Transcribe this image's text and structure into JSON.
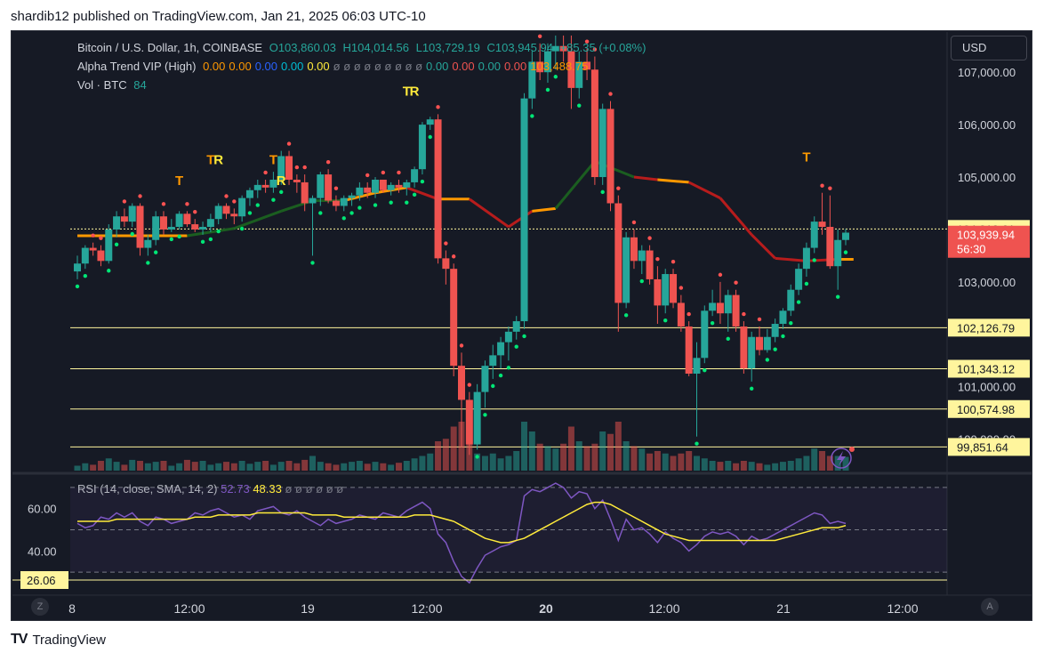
{
  "header": {
    "text": "shardib12 published on TradingView.com, Jan 21, 2025 06:03 UTC-10"
  },
  "footer": {
    "logo": "TV",
    "brand": "TradingView"
  },
  "currency_button": "USD",
  "legend": {
    "symbol": "Bitcoin / U.S. Dollar, 1h, COINBASE",
    "ohlc": {
      "o": "O103,860.03",
      "h": "H104,014.56",
      "l": "L103,729.19",
      "c": "C103,945.94",
      "chg": "+85.35 (+0.08%)"
    },
    "indicator_name": "Alpha Trend VIP (High)",
    "indicator_values": [
      {
        "text": "0.00",
        "color": "#ff9800"
      },
      {
        "text": "0.00",
        "color": "#ff9800"
      },
      {
        "text": "0.00",
        "color": "#2962ff"
      },
      {
        "text": "0.00",
        "color": "#00bcd4"
      },
      {
        "text": "0.00",
        "color": "#ffeb3b"
      },
      {
        "text": "ø ø ø ø ø ø ø ø ø",
        "color": "#787b86"
      },
      {
        "text": "0.00",
        "color": "#26a69a"
      },
      {
        "text": "0.00",
        "color": "#ef5350"
      },
      {
        "text": "0.00",
        "color": "#26a69a"
      },
      {
        "text": "0.00",
        "color": "#ef5350"
      },
      {
        "text": "103,488.75",
        "color": "#ff9800"
      }
    ],
    "volume_label": "Vol · BTC",
    "volume_value": "84",
    "rsi_label": "RSI (14, close, SMA, 14, 2)",
    "rsi_value": "52.73",
    "rsi_sma_value": "48.33",
    "rsi_empty": "ø ø ø ø ø ø"
  },
  "colors": {
    "up": "#26a69a",
    "down": "#ef5350",
    "signal_up": "#ffeb3b",
    "signal_down": "#ff9800",
    "trend_up": "#1b5e20",
    "trend_down": "#b71c1c",
    "level": "#fff59d",
    "rsi": "#7e57c2",
    "rsi_sma": "#ffeb3b"
  },
  "chart_data": {
    "type": "candlestick",
    "symbol": "Bitcoin / U.S. Dollar",
    "interval": "1h",
    "exchange": "COINBASE",
    "y_axis_labels": [
      "107,000.00",
      "106,000.00",
      "105,000.00",
      "103,000.00",
      "101,000.00",
      "100,000.00"
    ],
    "x_axis_labels": [
      "8",
      "12:00",
      "19",
      "12:00",
      "20",
      "12:00",
      "21",
      "12:00"
    ],
    "ylim": [
      99400,
      107750
    ],
    "last_price": "103,939.94",
    "countdown": "56:30",
    "levels": [
      {
        "price": 104010.61,
        "label": "104,010.61"
      },
      {
        "price": 102126.79,
        "label": "102,126.79"
      },
      {
        "price": 101343.12,
        "label": "101,343.12"
      },
      {
        "price": 100574.98,
        "label": "100,574.98"
      },
      {
        "price": 99851.64,
        "label": "99,851.64"
      }
    ],
    "candles": [
      [
        103200,
        103500,
        103050,
        103350
      ],
      [
        103350,
        103700,
        103250,
        103650
      ],
      [
        103650,
        103750,
        103500,
        103600
      ],
      [
        103600,
        103700,
        103300,
        103400
      ],
      [
        103400,
        104100,
        103350,
        104000
      ],
      [
        104000,
        104350,
        103850,
        104250
      ],
      [
        104250,
        104400,
        104050,
        104150
      ],
      [
        104150,
        104500,
        104050,
        104450
      ],
      [
        104450,
        104500,
        103500,
        103650
      ],
      [
        103650,
        103900,
        103500,
        103800
      ],
      [
        103800,
        104350,
        103700,
        104250
      ],
      [
        104250,
        104350,
        103900,
        104000
      ],
      [
        104000,
        104200,
        103950,
        104050
      ],
      [
        104050,
        104350,
        104000,
        104300
      ],
      [
        104300,
        104350,
        104050,
        104100
      ],
      [
        104100,
        104200,
        103950,
        104000
      ],
      [
        104000,
        104150,
        103900,
        104050
      ],
      [
        104050,
        104300,
        103950,
        104200
      ],
      [
        104200,
        104500,
        104100,
        104450
      ],
      [
        104450,
        104500,
        104200,
        104300
      ],
      [
        104300,
        104400,
        104100,
        104250
      ],
      [
        104250,
        104650,
        104150,
        104600
      ],
      [
        104600,
        104800,
        104450,
        104750
      ],
      [
        104750,
        104950,
        104600,
        104850
      ],
      [
        104850,
        104950,
        104700,
        104800
      ],
      [
        104800,
        105100,
        104700,
        104950
      ],
      [
        104950,
        105500,
        104850,
        105400
      ],
      [
        105400,
        105500,
        104850,
        104950
      ],
      [
        104950,
        105050,
        104700,
        104900
      ],
      [
        104900,
        105050,
        104350,
        104500
      ],
      [
        104500,
        104650,
        103500,
        104600
      ],
      [
        104600,
        105100,
        104450,
        105050
      ],
      [
        105050,
        105150,
        104500,
        104550
      ],
      [
        104550,
        104650,
        104350,
        104450
      ],
      [
        104450,
        104650,
        104350,
        104600
      ],
      [
        104600,
        104700,
        104450,
        104650
      ],
      [
        104650,
        104900,
        104550,
        104800
      ],
      [
        104800,
        104900,
        104600,
        104700
      ],
      [
        104700,
        105000,
        104600,
        104950
      ],
      [
        104950,
        104950,
        104700,
        104750
      ],
      [
        104750,
        104900,
        104650,
        104850
      ],
      [
        104850,
        104950,
        104700,
        104800
      ],
      [
        104800,
        104950,
        104650,
        104900
      ],
      [
        104900,
        105200,
        104800,
        105150
      ],
      [
        105150,
        106050,
        105050,
        106000
      ],
      [
        106000,
        106150,
        105900,
        106100
      ],
      [
        106100,
        106200,
        103350,
        103450
      ],
      [
        103450,
        103600,
        102950,
        103250
      ],
      [
        103250,
        103350,
        101200,
        101400
      ],
      [
        101400,
        101650,
        99850,
        100750
      ],
      [
        100750,
        100900,
        99700,
        99900
      ],
      [
        99900,
        101050,
        99800,
        100900
      ],
      [
        100900,
        101500,
        100600,
        101400
      ],
      [
        101400,
        101800,
        101150,
        101600
      ],
      [
        101600,
        101950,
        101350,
        101850
      ],
      [
        101850,
        102150,
        101500,
        102050
      ],
      [
        102050,
        102350,
        101900,
        102250
      ],
      [
        102250,
        106600,
        102100,
        106500
      ],
      [
        106500,
        107400,
        106300,
        107200
      ],
      [
        107200,
        107550,
        106850,
        107000
      ],
      [
        107000,
        107550,
        106800,
        107400
      ],
      [
        107400,
        107700,
        107050,
        107500
      ],
      [
        107500,
        107700,
        107200,
        107400
      ],
      [
        107400,
        107700,
        106300,
        106700
      ],
      [
        106700,
        107400,
        106500,
        107200
      ],
      [
        107200,
        107450,
        106850,
        107050
      ],
      [
        107050,
        107300,
        104850,
        105000
      ],
      [
        105000,
        106400,
        104850,
        106300
      ],
      [
        106300,
        106450,
        104350,
        104500
      ],
      [
        104500,
        104650,
        102050,
        102600
      ],
      [
        102600,
        103950,
        102500,
        103850
      ],
      [
        103850,
        104000,
        103250,
        103400
      ],
      [
        103400,
        103700,
        103150,
        103600
      ],
      [
        103600,
        103700,
        102950,
        103050
      ],
      [
        103050,
        103300,
        102200,
        102550
      ],
      [
        102550,
        103250,
        102400,
        103150
      ],
      [
        103150,
        103250,
        102500,
        102600
      ],
      [
        102600,
        102750,
        102050,
        102150
      ],
      [
        102150,
        102250,
        101200,
        101250
      ],
      [
        101250,
        101850,
        100050,
        101550
      ],
      [
        101550,
        102550,
        101450,
        102450
      ],
      [
        102450,
        102850,
        102350,
        102600
      ],
      [
        102600,
        103000,
        102200,
        102400
      ],
      [
        102400,
        102850,
        102050,
        102750
      ],
      [
        102750,
        102850,
        102050,
        102150
      ],
      [
        102150,
        102250,
        101250,
        101350
      ],
      [
        101350,
        102050,
        101100,
        101950
      ],
      [
        101950,
        102150,
        101600,
        101700
      ],
      [
        101700,
        102100,
        101650,
        101950
      ],
      [
        101950,
        102300,
        101850,
        102200
      ],
      [
        102200,
        102500,
        102100,
        102450
      ],
      [
        102450,
        102950,
        102350,
        102850
      ],
      [
        102850,
        103350,
        102750,
        103250
      ],
      [
        103250,
        103750,
        103100,
        103650
      ],
      [
        103650,
        104250,
        103550,
        104150
      ],
      [
        104150,
        104700,
        103900,
        104050
      ],
      [
        104050,
        104650,
        103250,
        103300
      ],
      [
        103300,
        104000,
        102850,
        103800
      ],
      [
        103800,
        104010,
        103700,
        103940
      ]
    ],
    "volumes": [
      0.1,
      0.15,
      0.12,
      0.2,
      0.25,
      0.18,
      0.12,
      0.22,
      0.2,
      0.15,
      0.18,
      0.2,
      0.1,
      0.15,
      0.22,
      0.18,
      0.2,
      0.12,
      0.15,
      0.18,
      0.15,
      0.2,
      0.14,
      0.18,
      0.2,
      0.12,
      0.18,
      0.2,
      0.15,
      0.22,
      0.3,
      0.18,
      0.15,
      0.12,
      0.15,
      0.18,
      0.2,
      0.14,
      0.18,
      0.15,
      0.12,
      0.16,
      0.2,
      0.25,
      0.3,
      0.35,
      0.6,
      0.65,
      0.9,
      1.0,
      0.55,
      0.35,
      0.3,
      0.35,
      0.25,
      0.3,
      0.4,
      1.0,
      0.8,
      0.55,
      0.5,
      0.45,
      0.55,
      0.9,
      0.6,
      0.5,
      0.55,
      0.8,
      0.75,
      1.0,
      0.6,
      0.5,
      0.45,
      0.35,
      0.4,
      0.35,
      0.3,
      0.35,
      0.4,
      0.3,
      0.25,
      0.2,
      0.18,
      0.2,
      0.15,
      0.2,
      0.18,
      0.15,
      0.12,
      0.15,
      0.18,
      0.2,
      0.25,
      0.3,
      0.45,
      0.4,
      0.3,
      0.3,
      0.28
    ],
    "trend_line": [
      {
        "i": 0,
        "p": 103880,
        "c": "signal_down"
      },
      {
        "i": 14,
        "p": 103880,
        "c": "trend_up"
      },
      {
        "i": 20,
        "p": 104020,
        "c": "trend_up"
      },
      {
        "i": 26,
        "p": 104350,
        "c": "trend_up"
      },
      {
        "i": 30,
        "p": 104550,
        "c": "trend_up"
      },
      {
        "i": 34,
        "p": 104550,
        "c": "signal_down"
      },
      {
        "i": 38,
        "p": 104700,
        "c": "signal_down"
      },
      {
        "i": 42,
        "p": 104800,
        "c": "trend_down"
      },
      {
        "i": 46,
        "p": 104580,
        "c": "signal_down"
      },
      {
        "i": 50,
        "p": 104580,
        "c": "trend_down"
      },
      {
        "i": 55,
        "p": 104050,
        "c": "trend_down"
      },
      {
        "i": 58,
        "p": 104350,
        "c": "signal_down"
      },
      {
        "i": 61,
        "p": 104400,
        "c": "trend_up"
      },
      {
        "i": 66,
        "p": 105300,
        "c": "trend_up"
      },
      {
        "i": 71,
        "p": 105000,
        "c": "trend_down"
      },
      {
        "i": 74,
        "p": 104950,
        "c": "signal_down"
      },
      {
        "i": 78,
        "p": 104900,
        "c": "trend_down"
      },
      {
        "i": 82,
        "p": 104600,
        "c": "trend_down"
      },
      {
        "i": 86,
        "p": 103900,
        "c": "trend_down"
      },
      {
        "i": 89,
        "p": 103450,
        "c": "trend_down"
      },
      {
        "i": 93,
        "p": 103400,
        "c": "trend_down"
      },
      {
        "i": 97,
        "p": 103430,
        "c": "signal_down"
      },
      {
        "i": 99,
        "p": 103430,
        "c": "signal_down"
      }
    ],
    "markers": [
      {
        "i": 13,
        "p": 104850,
        "t": "T",
        "c": "signal_down"
      },
      {
        "i": 17,
        "p": 105250,
        "t": "T",
        "c": "signal_down"
      },
      {
        "i": 18,
        "p": 105250,
        "t": "R",
        "c": "signal_up"
      },
      {
        "i": 25,
        "p": 105250,
        "t": "T",
        "c": "signal_down"
      },
      {
        "i": 26,
        "p": 104850,
        "t": "R",
        "c": "signal_up"
      },
      {
        "i": 42,
        "p": 106550,
        "t": "T",
        "c": "signal_up"
      },
      {
        "i": 43,
        "p": 106550,
        "t": "R",
        "c": "signal_up"
      },
      {
        "i": 93,
        "p": 105300,
        "t": "T",
        "c": "signal_down"
      }
    ],
    "rsi_axis_labels": [
      "60.00",
      "40.00"
    ],
    "rsi_min_label": "26.06",
    "rsi": [
      53,
      51,
      52,
      56,
      55,
      58,
      56,
      58,
      54,
      52,
      56,
      55,
      53,
      54,
      55,
      58,
      57,
      59,
      60,
      58,
      56,
      57,
      55,
      59,
      60,
      61,
      58,
      57,
      59,
      56,
      54,
      52,
      55,
      53,
      54,
      55,
      57,
      56,
      55,
      58,
      57,
      56,
      59,
      61,
      63,
      60,
      48,
      44,
      35,
      28,
      25,
      32,
      38,
      40,
      42,
      43,
      45,
      66,
      69,
      68,
      70,
      72,
      70,
      65,
      68,
      67,
      60,
      64,
      55,
      45,
      55,
      50,
      51,
      48,
      44,
      49,
      46,
      44,
      40,
      43,
      47,
      49,
      48,
      49,
      47,
      43,
      47,
      45,
      46,
      48,
      50,
      52,
      54,
      56,
      58,
      57,
      53,
      54,
      53
    ],
    "rsi_sma": [
      54,
      54,
      54,
      54,
      54,
      55,
      55,
      55,
      55,
      55,
      55,
      55,
      55,
      55,
      55,
      56,
      56,
      56,
      57,
      57,
      57,
      57,
      57,
      58,
      58,
      58,
      58,
      58,
      58,
      58,
      57,
      57,
      57,
      57,
      56,
      56,
      56,
      56,
      56,
      56,
      56,
      56,
      56,
      57,
      57,
      57,
      56,
      55,
      54,
      52,
      50,
      48,
      46,
      45,
      44,
      44,
      45,
      46,
      48,
      50,
      52,
      54,
      56,
      58,
      60,
      62,
      63,
      63,
      62,
      60,
      58,
      56,
      54,
      52,
      50,
      48,
      47,
      46,
      45,
      45,
      45,
      45,
      45,
      45,
      45,
      45,
      45,
      45,
      45,
      45,
      46,
      47,
      48,
      49,
      50,
      51,
      51,
      51,
      52
    ]
  }
}
